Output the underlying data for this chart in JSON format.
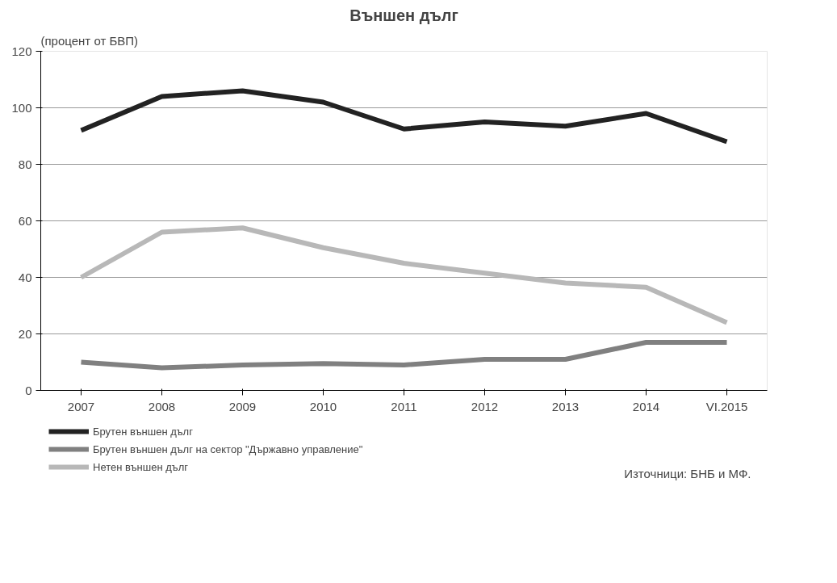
{
  "chart_data": {
    "type": "line",
    "title": "Външен дълг",
    "ylabel": "(процент от БВП)",
    "categories": [
      "2007",
      "2008",
      "2009",
      "2010",
      "2011",
      "2012",
      "2013",
      "2014",
      "VI.2015"
    ],
    "series": [
      {
        "name": "Брутен външен дълг",
        "color": "#222222",
        "values": [
          92,
          104,
          106,
          102,
          92.5,
          95,
          93.5,
          98,
          88
        ]
      },
      {
        "name": "Брутен външен дълг на сектор \"Държавно управление\"",
        "color": "#808080",
        "values": [
          10,
          8,
          9,
          9.5,
          9,
          11,
          11,
          17,
          17
        ]
      },
      {
        "name": "Нетен външен дълг",
        "color": "#b8b8b8",
        "values": [
          40,
          56,
          57.5,
          50.5,
          45,
          41.5,
          38,
          36.5,
          24
        ]
      }
    ],
    "ylim": [
      0,
      120
    ],
    "yticks": [
      0,
      20,
      40,
      60,
      80,
      100,
      120
    ],
    "grid": "y",
    "legend": "bottom left",
    "marker": "none",
    "line_style": "solid",
    "annotations": [
      "Източници: БНБ и МФ."
    ]
  }
}
